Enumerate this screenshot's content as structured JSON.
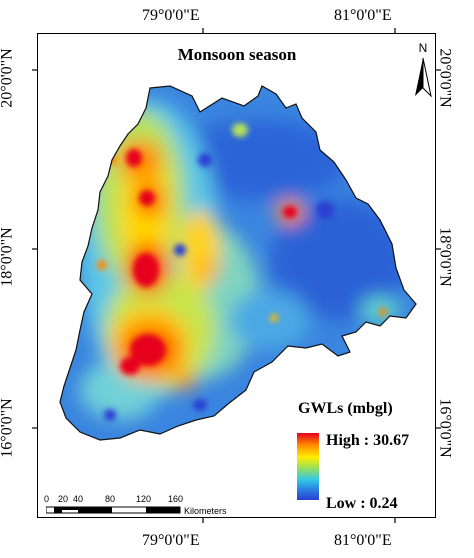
{
  "map": {
    "title": "Monsoon season",
    "top_labels": [
      "79°0'0\"E",
      "81°0'0\"E"
    ],
    "bottom_labels": [
      "79°0'0\"E",
      "81°0'0\"E"
    ],
    "left_labels": [
      "20°0'0\"N",
      "18°0'0\"N",
      "16°0'0\"N"
    ],
    "right_labels": [
      "20°0'0\"N",
      "18°0'0\"N",
      "16°0'0\"N"
    ]
  },
  "north_arrow": {
    "label": "N",
    "icon": "north-arrow-icon"
  },
  "legend": {
    "title": "GWLs (mbgl)",
    "high": "High : 30.67",
    "low": "Low : 0.24",
    "colors": {
      "high": "#e6001f",
      "mid": "#ffee00",
      "low": "#2b3fd2"
    }
  },
  "scale_bar": {
    "ticks": [
      "0",
      "20",
      "40",
      "80",
      "120",
      "160"
    ],
    "unit": "Kilometers"
  }
}
